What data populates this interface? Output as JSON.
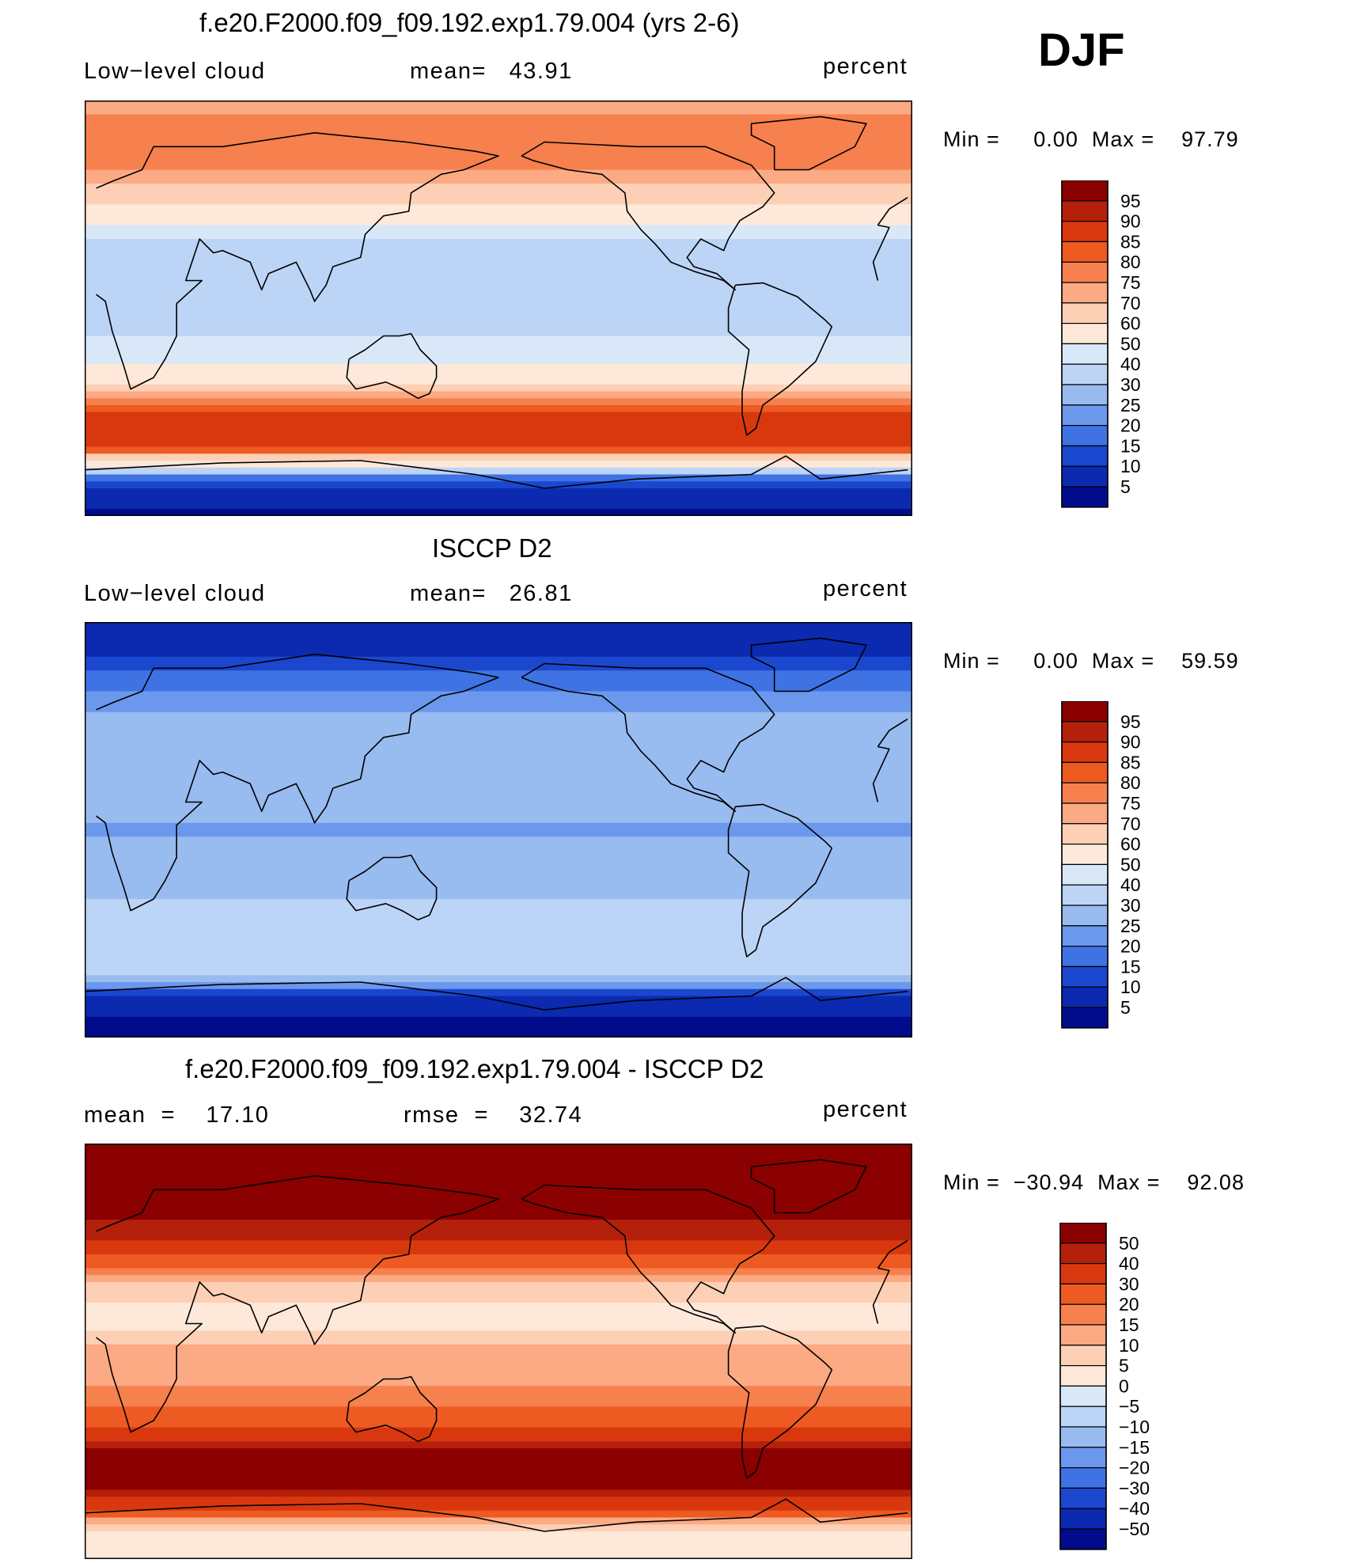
{
  "season": "DJF",
  "panels": [
    {
      "title": "f.e20.F2000.f09_f09.192.exp1.79.004 (yrs 2-6)",
      "left_label": "Low−level cloud",
      "center_label": "mean=   43.91",
      "units": "percent",
      "minmax": "Min =     0.00  Max =    97.79"
    },
    {
      "title": "ISCCP D2",
      "left_label": "Low−level cloud",
      "center_label": "mean=   26.81",
      "units": "percent",
      "minmax": "Min =     0.00  Max =    59.59"
    },
    {
      "title": "f.e20.F2000.f09_f09.192.exp1.79.004 - ISCCP D2",
      "left_label": "mean  =    17.10",
      "center_label": "rmse  =    32.74",
      "units": "percent",
      "minmax": "Min =  −30.94  Max =    92.08"
    }
  ],
  "colorbars": {
    "abs_labels": [
      "95",
      "90",
      "85",
      "80",
      "75",
      "70",
      "60",
      "50",
      "40",
      "30",
      "25",
      "20",
      "15",
      "10",
      "5"
    ],
    "abs_colors": [
      "#8b0000",
      "#b5200b",
      "#d9380f",
      "#ed5a22",
      "#f6804e",
      "#fbaa84",
      "#fdd0b6",
      "#fde8da",
      "#d9e8f8",
      "#bcd4f5",
      "#98bbf0",
      "#6b98ec",
      "#3f72e3",
      "#1b47cf",
      "#0b2ab0",
      "#000c8c"
    ],
    "diff_labels": [
      "50",
      "40",
      "30",
      "20",
      "15",
      "10",
      "5",
      "0",
      "−5",
      "−10",
      "−15",
      "−20",
      "−30",
      "−40",
      "−50"
    ],
    "diff_colors": [
      "#8b0000",
      "#b5200b",
      "#d9380f",
      "#ed5a22",
      "#f6804e",
      "#fbaa84",
      "#fdd0b6",
      "#fde8da",
      "#d9e8f8",
      "#bcd4f5",
      "#98bbf0",
      "#6b98ec",
      "#3f72e3",
      "#1b47cf",
      "#0b2ab0",
      "#000c8c"
    ]
  },
  "chart_data": [
    {
      "type": "heatmap",
      "title": "f.e20.F2000.f09_f09.192.exp1.79.004 (yrs 2-6)",
      "variable": "Low-level cloud",
      "units": "percent",
      "mean": 43.91,
      "min": 0.0,
      "max": 97.79,
      "levels": [
        5,
        10,
        15,
        20,
        25,
        30,
        40,
        50,
        60,
        70,
        75,
        80,
        85,
        90,
        95
      ],
      "lon_range": [
        0,
        360
      ],
      "lat_range": [
        -90,
        90
      ],
      "zonal_profile": {
        "lat": [
          90,
          75,
          60,
          45,
          30,
          15,
          0,
          -15,
          -30,
          -45,
          -60,
          -75,
          -90
        ],
        "value": [
          72,
          78,
          76,
          62,
          38,
          30,
          35,
          42,
          55,
          85,
          88,
          12,
          3
        ]
      }
    },
    {
      "type": "heatmap",
      "title": "ISCCP D2",
      "variable": "Low-level cloud",
      "units": "percent",
      "mean": 26.81,
      "min": 0.0,
      "max": 59.59,
      "levels": [
        5,
        10,
        15,
        20,
        25,
        30,
        40,
        50,
        60,
        70,
        75,
        80,
        85,
        90,
        95
      ],
      "lon_range": [
        0,
        360
      ],
      "lat_range": [
        -90,
        90
      ],
      "zonal_profile": {
        "lat": [
          90,
          75,
          60,
          45,
          30,
          15,
          0,
          -15,
          -30,
          -45,
          -60,
          -75,
          -90
        ],
        "value": [
          5,
          10,
          20,
          28,
          30,
          28,
          24,
          28,
          30,
          32,
          34,
          6,
          3
        ]
      }
    },
    {
      "type": "heatmap",
      "title": "f.e20.F2000.f09_f09.192.exp1.79.004 - ISCCP D2",
      "variable": "Low-level cloud difference",
      "units": "percent",
      "mean": 17.1,
      "rmse": 32.74,
      "min": -30.94,
      "max": 92.08,
      "levels": [
        -50,
        -40,
        -30,
        -20,
        -15,
        -10,
        -5,
        0,
        5,
        10,
        15,
        20,
        30,
        40,
        50
      ],
      "lon_range": [
        0,
        360
      ],
      "lat_range": [
        -90,
        90
      ],
      "zonal_profile": {
        "lat": [
          90,
          75,
          60,
          45,
          30,
          15,
          0,
          -15,
          -30,
          -45,
          -60,
          -75,
          -90
        ],
        "value": [
          65,
          68,
          56,
          34,
          8,
          2,
          11,
          14,
          25,
          53,
          54,
          6,
          0
        ]
      }
    }
  ]
}
